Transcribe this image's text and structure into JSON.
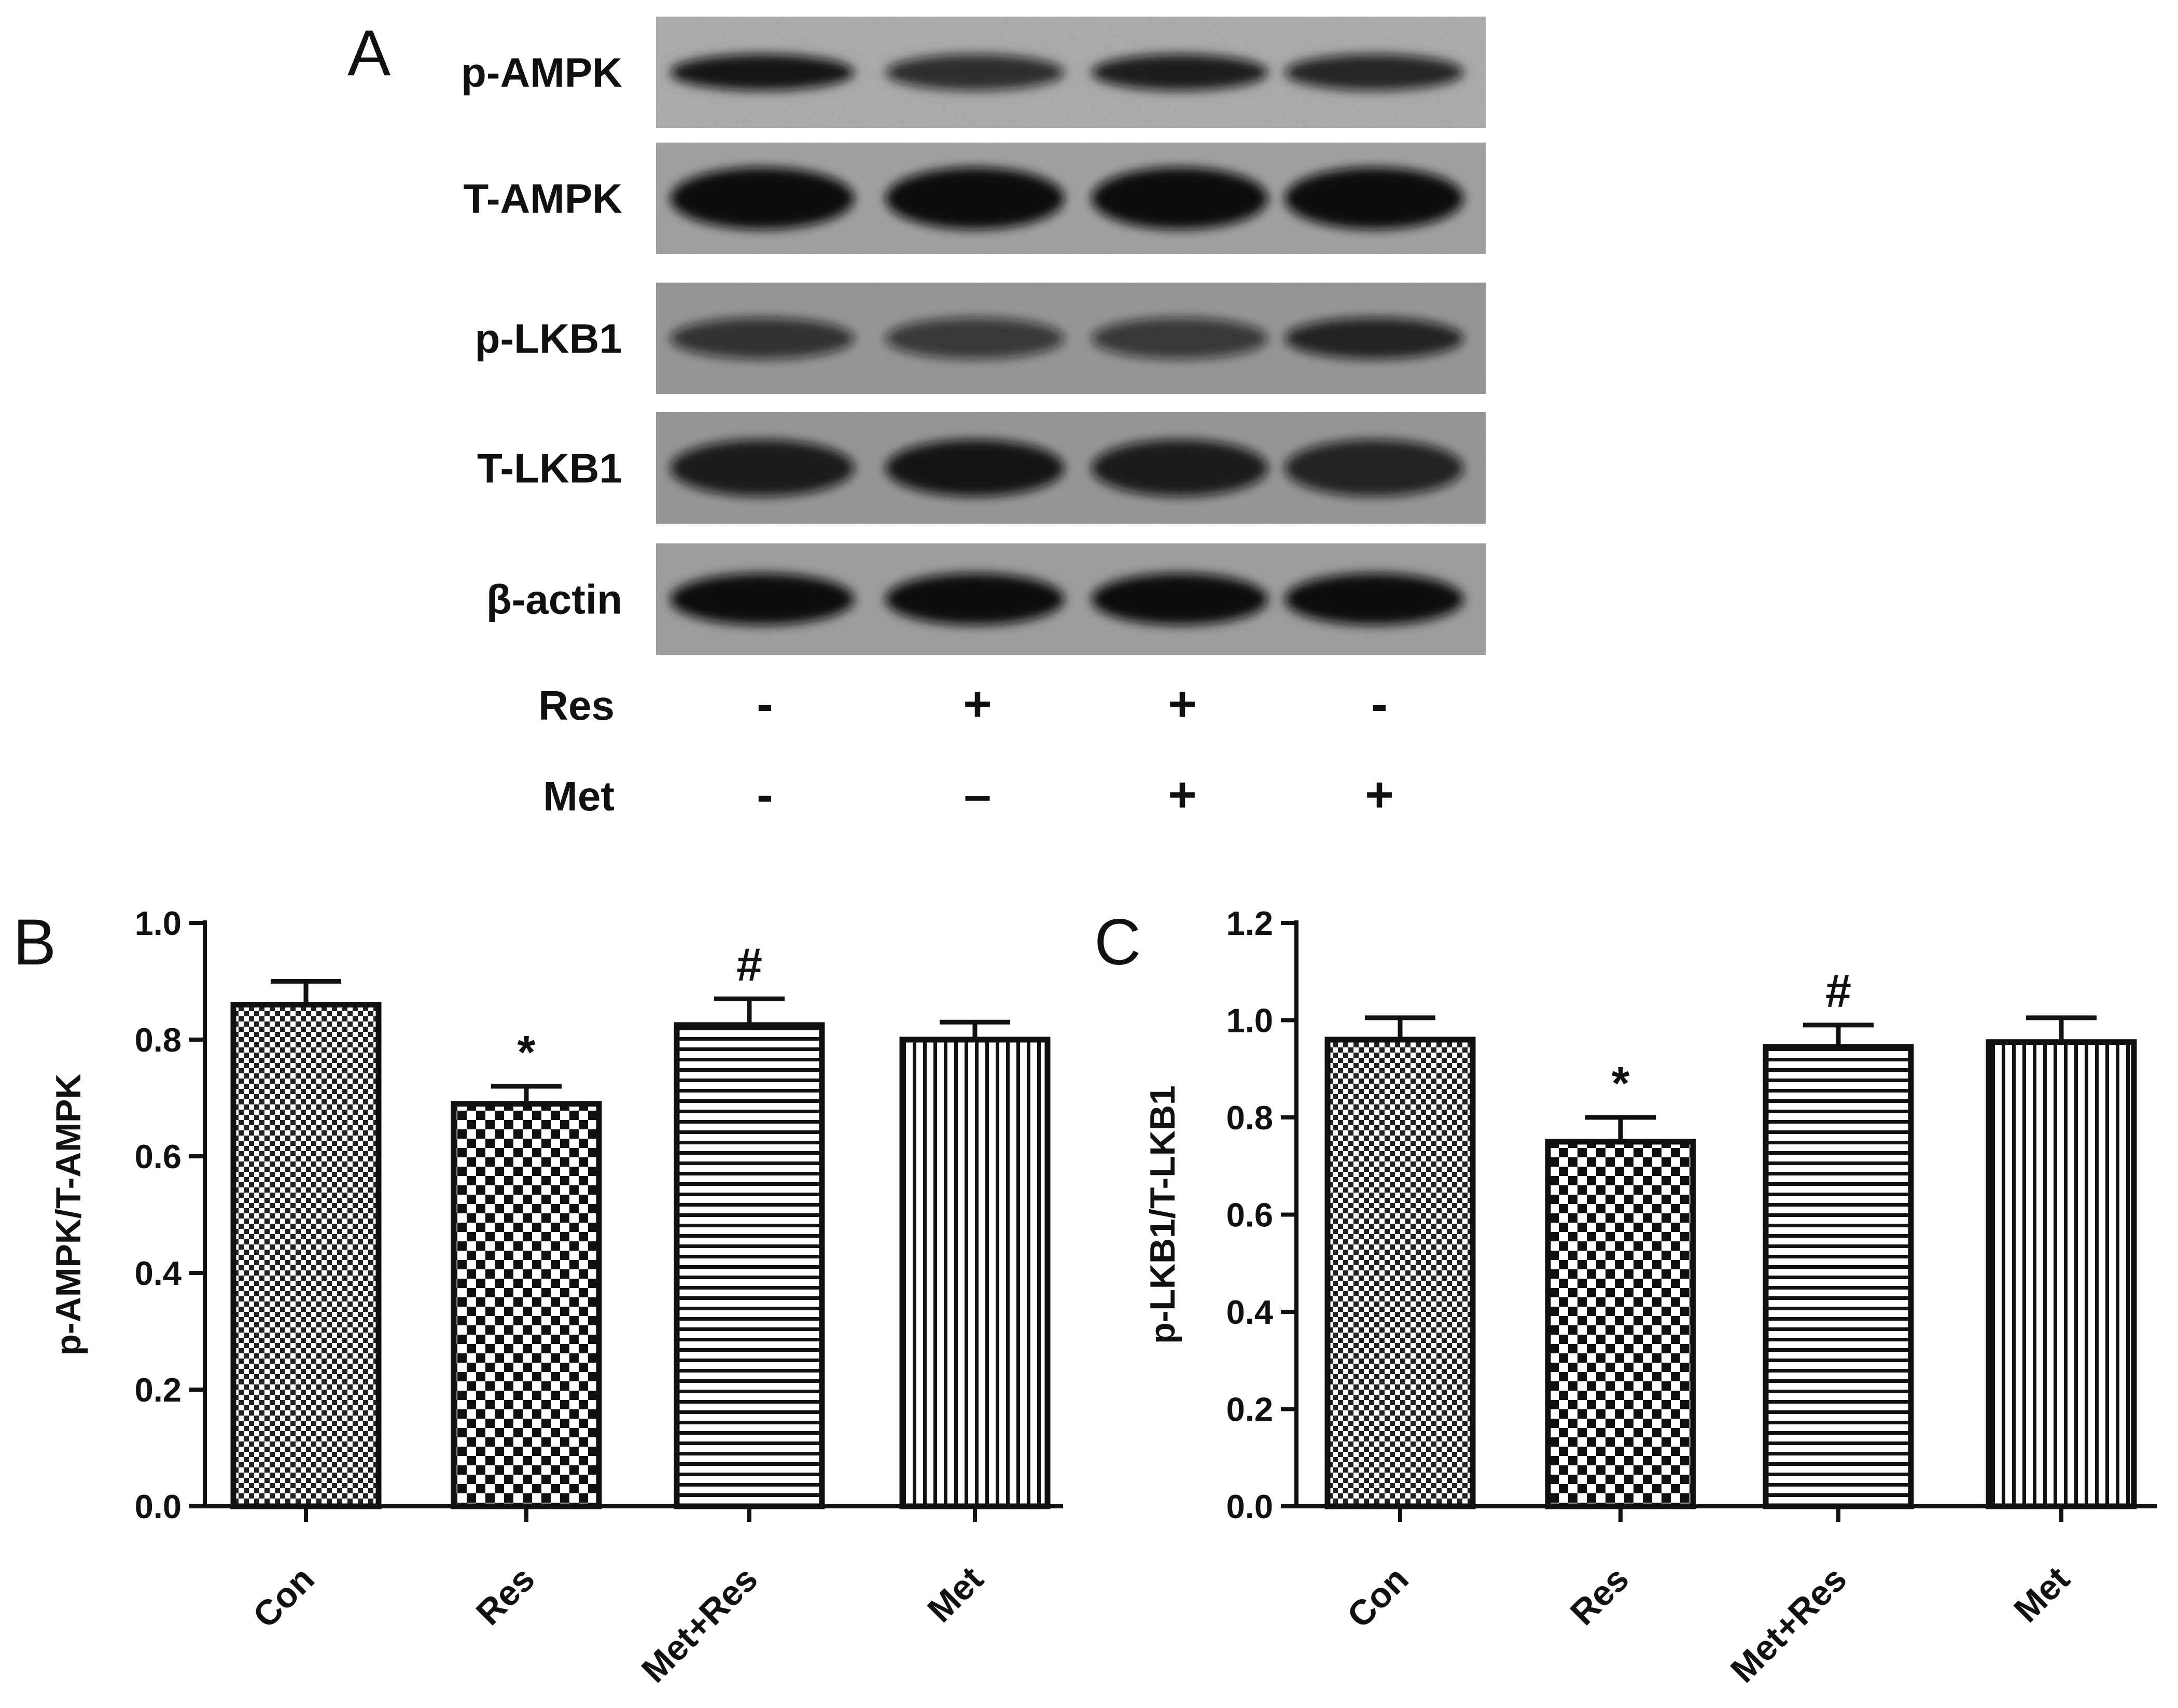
{
  "panels": {
    "A": {
      "letter": "A",
      "blot_rows": [
        "p-AMPK",
        "T-AMPK",
        "p-LKB1",
        "T-LKB1",
        "β-actin"
      ],
      "treatments": [
        {
          "label": "Res",
          "signs": [
            "-",
            "+",
            "+",
            "-"
          ]
        },
        {
          "label": "Met",
          "signs": [
            "-",
            "–",
            "+",
            "+"
          ]
        }
      ]
    },
    "B": {
      "letter": "B"
    },
    "C": {
      "letter": "C"
    }
  },
  "chart_data": [
    {
      "type": "bar",
      "panel": "B",
      "categories": [
        "Con",
        "Res",
        "Met+Res",
        "Met"
      ],
      "values": [
        0.86,
        0.69,
        0.825,
        0.8
      ],
      "errors": [
        0.04,
        0.03,
        0.045,
        0.03
      ],
      "annotations": [
        "",
        "*",
        "#",
        ""
      ],
      "patterns": [
        "fine-check",
        "checkerboard",
        "horizontal-lines",
        "vertical-lines"
      ],
      "ylabel": "p-AMPK/T-AMPK",
      "ylim": [
        0,
        1.0
      ],
      "yticks": [
        0.0,
        0.2,
        0.4,
        0.6,
        0.8,
        1.0
      ],
      "ytick_labels": [
        "0.0",
        "0.2",
        "0.4",
        "0.6",
        "0.8",
        "1.0"
      ],
      "grid": false
    },
    {
      "type": "bar",
      "panel": "C",
      "categories": [
        "Con",
        "Res",
        "Met+Res",
        "Met"
      ],
      "values": [
        0.96,
        0.75,
        0.945,
        0.955
      ],
      "errors": [
        0.045,
        0.05,
        0.045,
        0.05
      ],
      "annotations": [
        "",
        "*",
        "#",
        ""
      ],
      "patterns": [
        "fine-check",
        "checkerboard",
        "horizontal-lines",
        "vertical-lines"
      ],
      "ylabel": "p-LKB1/T-LKB1",
      "ylim": [
        0,
        1.2
      ],
      "yticks": [
        0.0,
        0.2,
        0.4,
        0.6,
        0.8,
        1.0,
        1.2
      ],
      "ytick_labels": [
        "0.0",
        "0.2",
        "0.4",
        "0.6",
        "0.8",
        "1.0",
        "1.2"
      ],
      "grid": false
    }
  ]
}
